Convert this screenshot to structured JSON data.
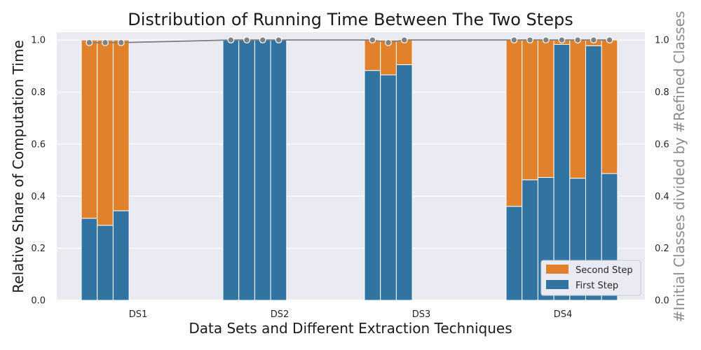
{
  "chart_data": {
    "type": "bar",
    "stacked": true,
    "title": "Distribution of Running Time Between The Two Steps",
    "xlabel": "Data Sets and Different Extraction Techniques",
    "ylabel": "Relative Share of Computation Time",
    "ylabel_right": "#Initial Classes divided by #Refined Classes",
    "ylim": [
      0,
      1.03
    ],
    "ylim_right": [
      0,
      1.03
    ],
    "yticks": [
      "0.0",
      "0.2",
      "0.4",
      "0.6",
      "0.8",
      "1.0"
    ],
    "grid": true,
    "legend_position": "bottom-right",
    "groups": [
      {
        "label": "DS1",
        "first_step": [
          0.315,
          0.288,
          0.344
        ],
        "second_step": [
          0.685,
          0.712,
          0.656
        ],
        "ratio": [
          0.99,
          0.99,
          0.99
        ]
      },
      {
        "label": "DS2",
        "first_step": [
          1.0,
          1.0,
          1.0,
          1.0
        ],
        "second_step": [
          0.0,
          0.0,
          0.0,
          0.0
        ],
        "ratio": [
          1.0,
          1.0,
          1.0,
          1.0
        ]
      },
      {
        "label": "DS3",
        "first_step": [
          0.883,
          0.866,
          0.905
        ],
        "second_step": [
          0.117,
          0.134,
          0.095
        ],
        "ratio": [
          1.0,
          0.99,
          1.0
        ]
      },
      {
        "label": "DS4",
        "first_step": [
          0.361,
          0.463,
          0.472,
          0.983,
          0.469,
          0.978,
          0.487
        ],
        "second_step": [
          0.639,
          0.537,
          0.528,
          0.017,
          0.531,
          0.022,
          0.513
        ],
        "ratio": [
          1.0,
          1.0,
          1.0,
          1.0,
          1.0,
          1.0,
          1.0
        ]
      }
    ],
    "series": [
      {
        "name": "Second Step",
        "color": "#e1812c"
      },
      {
        "name": "First Step",
        "color": "#3274a1"
      }
    ],
    "line_series": {
      "color": "#808080",
      "marker_color": "#808080"
    }
  }
}
